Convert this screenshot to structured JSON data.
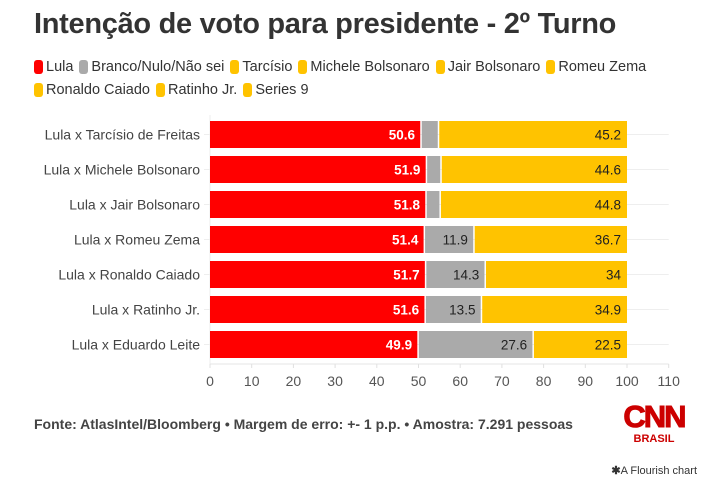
{
  "chart_data": {
    "type": "bar",
    "orientation": "horizontal",
    "stacked": true,
    "title": "Intenção de voto para presidente - 2º Turno",
    "xlabel": "",
    "ylabel": "",
    "xlim": [
      0,
      110
    ],
    "x_ticks": [
      "0",
      "10",
      "20",
      "30",
      "40",
      "50",
      "60",
      "70",
      "80",
      "90",
      "100",
      "110"
    ],
    "grid": true,
    "legend_position": "top",
    "legend": [
      {
        "name": "Lula",
        "color": "#ff0000"
      },
      {
        "name": "Branco/Nulo/Não sei",
        "color": "#aaaaaa"
      },
      {
        "name": "Tarcísio",
        "color": "#ffc300"
      },
      {
        "name": "Michele Bolsonaro",
        "color": "#ffc300"
      },
      {
        "name": "Jair Bolsonaro",
        "color": "#ffc300"
      },
      {
        "name": "Romeu Zema",
        "color": "#ffc300"
      },
      {
        "name": "Ronaldo Caiado",
        "color": "#ffc300"
      },
      {
        "name": "Ratinho Jr.",
        "color": "#ffc300"
      },
      {
        "name": "Series 9",
        "color": "#ffc300"
      }
    ],
    "categories": [
      "Lula x Tarcísio de Freitas",
      "Lula x Michele Bolsonaro",
      "Lula x Jair Bolsonaro",
      "Lula x Romeu Zema",
      "Lula x Ronaldo Caiado",
      "Lula x Ratinho Jr.",
      "Lula x Eduardo Leite"
    ],
    "rows": [
      {
        "lula": 50.6,
        "branco": 4.2,
        "opponent": 45.2,
        "branco_label": ""
      },
      {
        "lula": 51.9,
        "branco": 3.5,
        "opponent": 44.6,
        "branco_label": ""
      },
      {
        "lula": 51.8,
        "branco": 3.4,
        "opponent": 44.8,
        "branco_label": ""
      },
      {
        "lula": 51.4,
        "branco": 11.9,
        "opponent": 36.7,
        "branco_label": "11.9"
      },
      {
        "lula": 51.7,
        "branco": 14.3,
        "opponent": 34,
        "branco_label": "14.3"
      },
      {
        "lula": 51.6,
        "branco": 13.5,
        "opponent": 34.9,
        "branco_label": "13.5"
      },
      {
        "lula": 49.9,
        "branco": 27.6,
        "opponent": 22.5,
        "branco_label": "27.6"
      }
    ],
    "colors": {
      "lula": "#ff0000",
      "branco": "#aaaaaa",
      "opponent": "#ffc300"
    }
  },
  "footer": {
    "source": "Fonte: AtlasIntel/Bloomberg • Margem de erro: +- 1 p.p. • Amostra: 7.291 pessoas",
    "logo_top": "CNN",
    "logo_bottom": "BRASIL",
    "flourish": "A Flourish chart",
    "flourish_icon": "asterisk-icon"
  }
}
